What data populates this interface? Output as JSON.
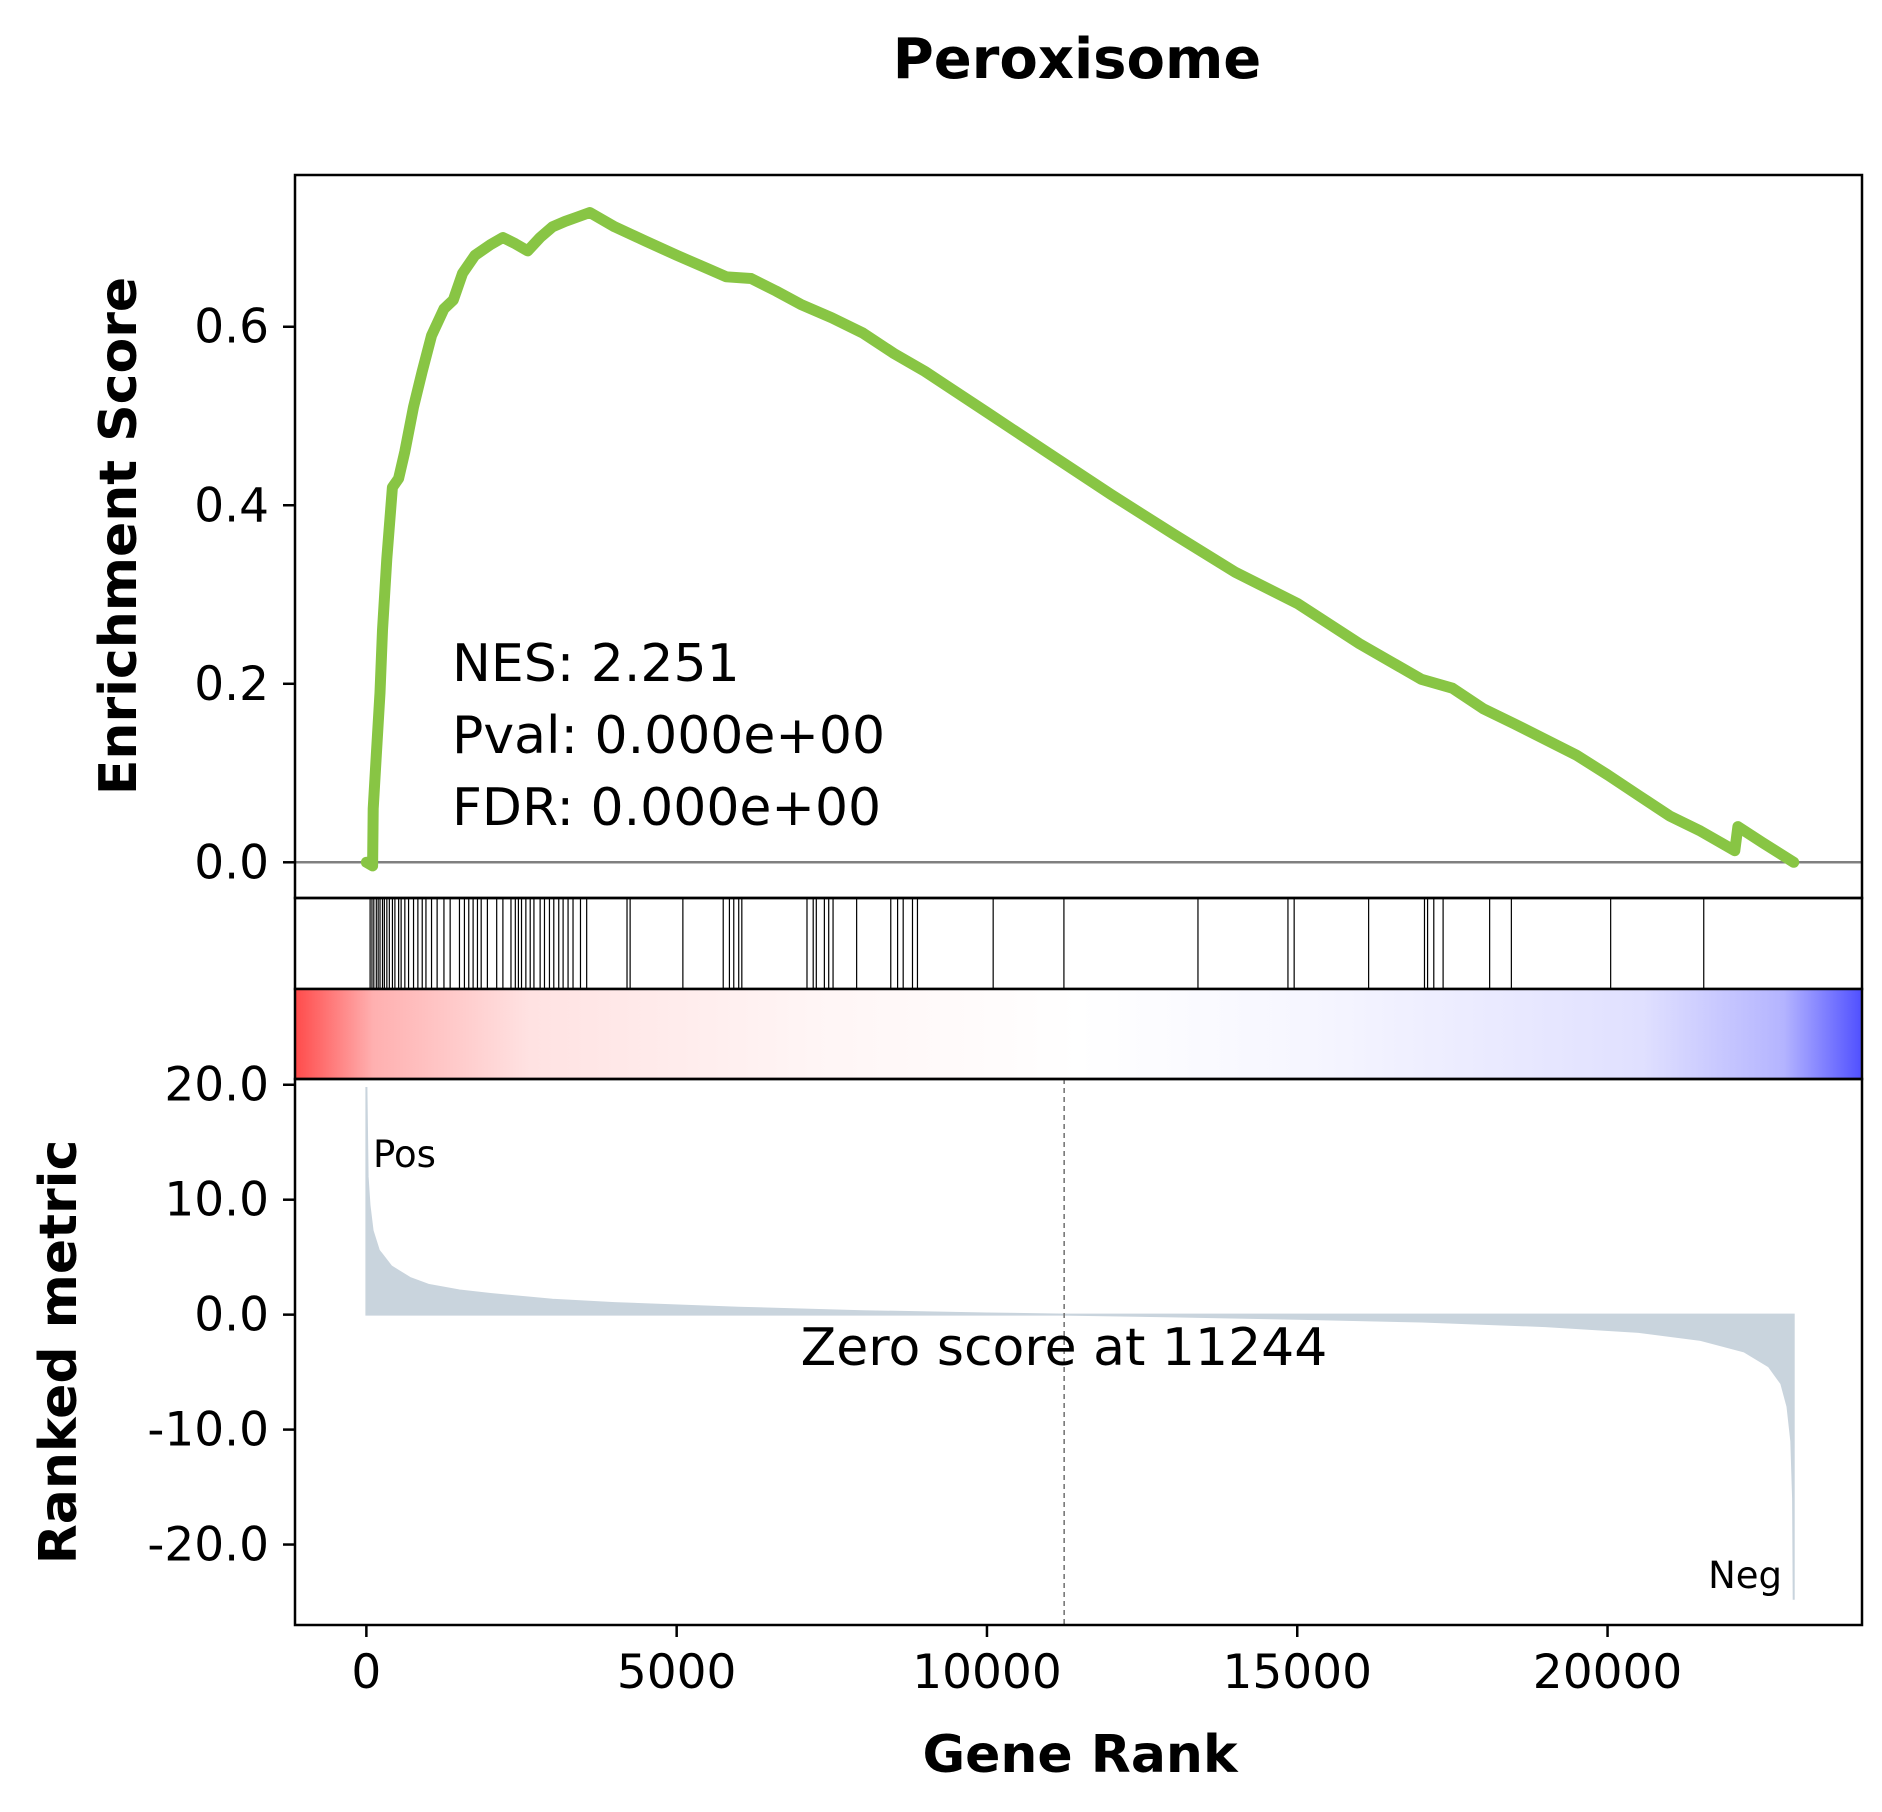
{
  "colors": {
    "es_line": "#88C544",
    "metric_fill": "#C9D4DD",
    "zero_line": "#808080",
    "pos": "#FF0000",
    "neg": "#0000FF",
    "axes": "#000000"
  },
  "chart_data": {
    "type": "line",
    "title": "Peroxisome",
    "xlabel": "Gene Rank",
    "xlim": [
      -1150,
      24100
    ],
    "xticks": [
      {
        "value": 0,
        "label": "0"
      },
      {
        "value": 5000,
        "label": "5000"
      },
      {
        "value": 10000,
        "label": "10000"
      },
      {
        "value": 15000,
        "label": "15000"
      },
      {
        "value": 20000,
        "label": "20000"
      }
    ],
    "enrichment": {
      "ylabel": "Enrichment Score",
      "ylim": [
        -0.04,
        0.77
      ],
      "yticks": [
        {
          "value": 0.0,
          "label": "0.0"
        },
        {
          "value": 0.2,
          "label": "0.2"
        },
        {
          "value": 0.4,
          "label": "0.4"
        },
        {
          "value": 0.6,
          "label": "0.6"
        }
      ],
      "points": [
        [
          0,
          0.0
        ],
        [
          100,
          -0.004
        ],
        [
          110,
          0.06
        ],
        [
          160,
          0.12
        ],
        [
          220,
          0.19
        ],
        [
          260,
          0.26
        ],
        [
          330,
          0.34
        ],
        [
          420,
          0.42
        ],
        [
          520,
          0.43
        ],
        [
          620,
          0.46
        ],
        [
          760,
          0.51
        ],
        [
          900,
          0.55
        ],
        [
          1050,
          0.59
        ],
        [
          1250,
          0.62
        ],
        [
          1400,
          0.63
        ],
        [
          1550,
          0.66
        ],
        [
          1750,
          0.68
        ],
        [
          2000,
          0.692
        ],
        [
          2200,
          0.7
        ],
        [
          2400,
          0.693
        ],
        [
          2600,
          0.685
        ],
        [
          2800,
          0.7
        ],
        [
          3000,
          0.712
        ],
        [
          3200,
          0.718
        ],
        [
          3400,
          0.723
        ],
        [
          3600,
          0.728
        ],
        [
          4000,
          0.712
        ],
        [
          4500,
          0.696
        ],
        [
          5000,
          0.68
        ],
        [
          5500,
          0.665
        ],
        [
          5800,
          0.656
        ],
        [
          6200,
          0.654
        ],
        [
          6600,
          0.64
        ],
        [
          7000,
          0.625
        ],
        [
          7500,
          0.61
        ],
        [
          8000,
          0.593
        ],
        [
          8500,
          0.57
        ],
        [
          9000,
          0.55
        ],
        [
          10000,
          0.504
        ],
        [
          11000,
          0.458
        ],
        [
          12000,
          0.412
        ],
        [
          13000,
          0.368
        ],
        [
          14000,
          0.325
        ],
        [
          15000,
          0.29
        ],
        [
          16000,
          0.245
        ],
        [
          17000,
          0.205
        ],
        [
          17500,
          0.195
        ],
        [
          18000,
          0.172
        ],
        [
          18500,
          0.155
        ],
        [
          19500,
          0.12
        ],
        [
          20000,
          0.098
        ],
        [
          20500,
          0.075
        ],
        [
          21000,
          0.052
        ],
        [
          21500,
          0.035
        ],
        [
          22050,
          0.013
        ],
        [
          22100,
          0.04
        ],
        [
          22500,
          0.022
        ],
        [
          23000,
          0.0
        ]
      ],
      "stats": {
        "nes": "NES: 2.251",
        "pval": "Pval: 0.000e+00",
        "fdr": "FDR: 0.000e+00"
      }
    },
    "hits": [
      60,
      90,
      120,
      160,
      190,
      220,
      260,
      290,
      330,
      370,
      420,
      460,
      520,
      560,
      620,
      680,
      760,
      830,
      900,
      960,
      1050,
      1140,
      1250,
      1350,
      1500,
      1580,
      1650,
      1720,
      1790,
      1850,
      1950,
      2100,
      2200,
      2330,
      2400,
      2450,
      2500,
      2570,
      2640,
      2700,
      2800,
      2870,
      2950,
      3020,
      3100,
      3170,
      3250,
      3330,
      3450,
      3550,
      4200,
      4250,
      5100,
      5750,
      5850,
      5920,
      6000,
      6050,
      7100,
      7200,
      7250,
      7380,
      7450,
      7520,
      7900,
      8450,
      8560,
      8650,
      8800,
      8880,
      10100,
      11240,
      13400,
      14850,
      14950,
      16150,
      17050,
      17100,
      17200,
      17350,
      18100,
      18450,
      20050,
      21550
    ],
    "heat_gradient": [
      {
        "offset": 0.0,
        "color": "#FF4B4B"
      },
      {
        "offset": 0.05,
        "color": "#FFB0B0"
      },
      {
        "offset": 0.15,
        "color": "#FFE2E2"
      },
      {
        "offset": 0.33,
        "color": "#FFF5F5"
      },
      {
        "offset": 0.5,
        "color": "#FFFFFF"
      },
      {
        "offset": 0.66,
        "color": "#F5F5FF"
      },
      {
        "offset": 0.86,
        "color": "#E0E0FF"
      },
      {
        "offset": 0.95,
        "color": "#B4B4FF"
      },
      {
        "offset": 1.0,
        "color": "#5050FF"
      }
    ],
    "ranked_metric": {
      "ylabel": "Ranked metric",
      "ylim": [
        -27,
        20.5
      ],
      "yticks": [
        {
          "value": 20,
          "label": "20.0"
        },
        {
          "value": 10,
          "label": "10.0"
        },
        {
          "value": 0,
          "label": "0.0"
        },
        {
          "value": -10,
          "label": "-10.0"
        },
        {
          "value": -20,
          "label": "-20.0"
        }
      ],
      "points": [
        [
          0,
          19.8
        ],
        [
          20,
          12.0
        ],
        [
          50,
          9.5
        ],
        [
          100,
          7.3
        ],
        [
          200,
          5.6
        ],
        [
          400,
          4.2
        ],
        [
          700,
          3.2
        ],
        [
          1000,
          2.6
        ],
        [
          1500,
          2.1
        ],
        [
          2000,
          1.8
        ],
        [
          3000,
          1.3
        ],
        [
          4000,
          1.0
        ],
        [
          6000,
          0.6
        ],
        [
          8000,
          0.3
        ],
        [
          10000,
          0.1
        ],
        [
          11244,
          0.0
        ],
        [
          13000,
          -0.15
        ],
        [
          15000,
          -0.35
        ],
        [
          17000,
          -0.6
        ],
        [
          19000,
          -1.0
        ],
        [
          20500,
          -1.5
        ],
        [
          21500,
          -2.2
        ],
        [
          22200,
          -3.2
        ],
        [
          22600,
          -4.5
        ],
        [
          22800,
          -6.0
        ],
        [
          22900,
          -8.0
        ],
        [
          22960,
          -11.0
        ],
        [
          22990,
          -16.0
        ],
        [
          23000,
          -24.8
        ]
      ],
      "zero_cross": 11244,
      "zero_label": "Zero score at 11244",
      "pos_label": "Pos",
      "neg_label": "Neg"
    }
  }
}
